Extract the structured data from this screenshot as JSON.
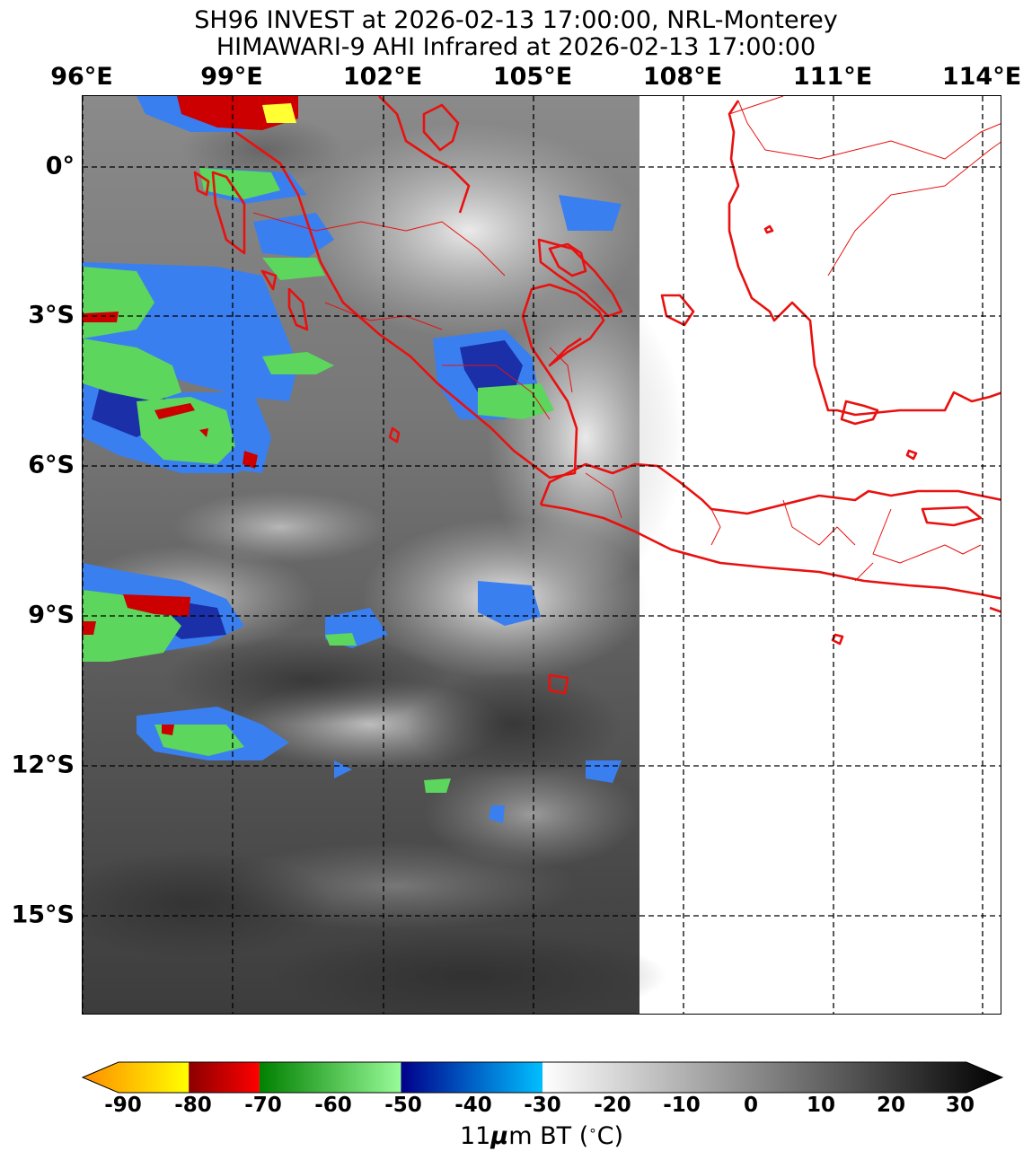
{
  "title": {
    "line1": "SH96 INVEST at 2026-02-13 17:00:00, NRL-Monterey",
    "line2": "HIMAWARI-9 AHI Infrared at 2026-02-13 17:00:00"
  },
  "map": {
    "lon_labels": [
      "96°E",
      "99°E",
      "102°E",
      "105°E",
      "108°E",
      "111°E",
      "114°E"
    ],
    "lat_labels": [
      "0°",
      "3°S",
      "6°S",
      "9°S",
      "12°S",
      "15°S"
    ],
    "land_outline_color": "#e8110f",
    "gridline_style": "dashed",
    "imagery_extent_east": "~107°E (no data east of swath)"
  },
  "colorbar": {
    "label": "11μm BT (°C)",
    "label_prefix": "11",
    "label_bold": "μ",
    "label_suffix": "m BT (",
    "label_degree": "∘",
    "label_end": "C)",
    "ticks": [
      "-90",
      "-80",
      "-70",
      "-60",
      "-50",
      "-40",
      "-30",
      "-20",
      "-10",
      "0",
      "10",
      "20",
      "30"
    ],
    "segments": [
      {
        "from": -95,
        "to": -80,
        "colors": [
          "#ff8c00",
          "#ffff00"
        ]
      },
      {
        "from": -80,
        "to": -70,
        "colors": [
          "#8b0000",
          "#ff0000"
        ]
      },
      {
        "from": -70,
        "to": -50,
        "colors": [
          "#008000",
          "#98fb98"
        ]
      },
      {
        "from": -50,
        "to": -30,
        "colors": [
          "#00008b",
          "#00bfff"
        ]
      },
      {
        "from": -30,
        "to": 35,
        "colors": [
          "#ffffff",
          "#000000"
        ]
      }
    ]
  }
}
